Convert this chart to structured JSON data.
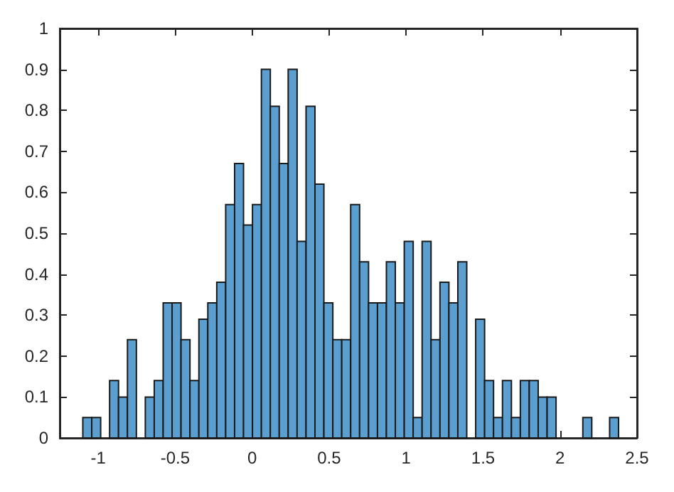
{
  "chart_data": {
    "type": "histogram",
    "bins": [
      -1.1,
      -1.042,
      -0.984,
      -0.926,
      -0.868,
      -0.81,
      -0.752,
      -0.694,
      -0.636,
      -0.578,
      -0.52,
      -0.462,
      -0.404,
      -0.346,
      -0.288,
      -0.23,
      -0.172,
      -0.114,
      -0.056,
      0.002,
      0.06,
      0.118,
      0.176,
      0.234,
      0.292,
      0.35,
      0.408,
      0.466,
      0.524,
      0.582,
      0.64,
      0.698,
      0.756,
      0.814,
      0.872,
      0.93,
      0.988,
      1.046,
      1.104,
      1.162,
      1.22,
      1.278,
      1.336,
      1.394,
      1.452,
      1.51,
      1.568,
      1.626,
      1.684,
      1.742,
      1.8,
      1.858,
      1.916,
      1.974,
      2.032,
      2.09,
      2.148,
      2.206,
      2.264,
      2.322,
      2.38
    ],
    "values": [
      0.05,
      0.05,
      0,
      0.14,
      0.1,
      0.24,
      0,
      0.1,
      0.14,
      0.33,
      0.33,
      0.24,
      0.14,
      0.29,
      0.33,
      0.38,
      0.57,
      0.67,
      0.52,
      0.57,
      0.9,
      0.81,
      0.67,
      0.9,
      0.48,
      0.81,
      0.62,
      0.33,
      0.24,
      0.24,
      0.57,
      0.43,
      0.33,
      0.33,
      0.43,
      0.33,
      0.48,
      0.05,
      0.48,
      0.24,
      0.38,
      0.33,
      0.43,
      0,
      0.29,
      0.14,
      0.05,
      0.14,
      0.05,
      0.14,
      0.14,
      0.1,
      0.1,
      0,
      0,
      0,
      0.05,
      0,
      0,
      0.05
    ],
    "color": "#5b9fd1",
    "xlim": [
      -1.25,
      2.5
    ],
    "xticks": [
      -1,
      -0.5,
      0,
      0.5,
      1,
      1.5,
      2,
      2.5
    ],
    "ylim": [
      0,
      1
    ],
    "yticks": [
      0,
      0.1,
      0.2,
      0.3,
      0.4,
      0.5,
      0.6,
      0.7,
      0.8,
      0.9,
      1
    ]
  }
}
